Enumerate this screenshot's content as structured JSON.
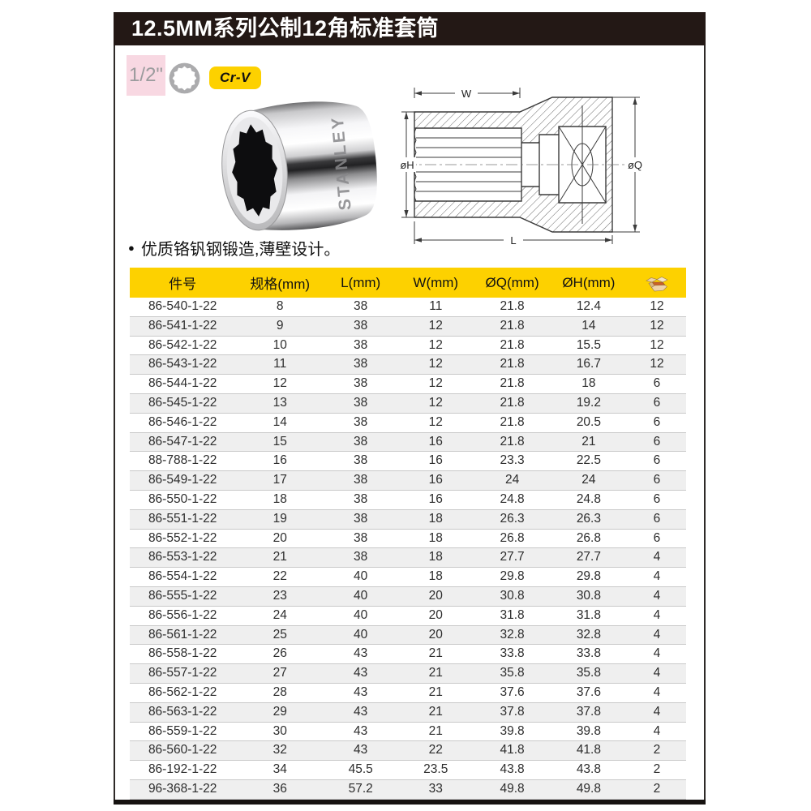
{
  "page": {
    "title": "12.5MM系列公制12角标准套筒",
    "bullet_glyph": "●",
    "feature_bullet": "优质铬钒钢锻造,薄壁设计。"
  },
  "badges": {
    "drive_size": "1/2\"",
    "drive_profile_icon": "12-point-socket-icon",
    "material": "Cr-V"
  },
  "product": {
    "brand_embossed": "STANLEY"
  },
  "diagram": {
    "label_w": "W",
    "label_h": "øH",
    "label_q": "øQ",
    "label_l": "L"
  },
  "table": {
    "headers": [
      "件号",
      "规格(mm)",
      "L(mm)",
      "W(mm)",
      "ØQ(mm)",
      "ØH(mm)"
    ],
    "qty_column_icon": "box-icon",
    "rows": [
      [
        "86-540-1-22",
        "8",
        "38",
        "11",
        "21.8",
        "12.4",
        "12"
      ],
      [
        "86-541-1-22",
        "9",
        "38",
        "12",
        "21.8",
        "14",
        "12"
      ],
      [
        "86-542-1-22",
        "10",
        "38",
        "12",
        "21.8",
        "15.5",
        "12"
      ],
      [
        "86-543-1-22",
        "11",
        "38",
        "12",
        "21.8",
        "16.7",
        "12"
      ],
      [
        "86-544-1-22",
        "12",
        "38",
        "12",
        "21.8",
        "18",
        "6"
      ],
      [
        "86-545-1-22",
        "13",
        "38",
        "12",
        "21.8",
        "19.2",
        "6"
      ],
      [
        "86-546-1-22",
        "14",
        "38",
        "12",
        "21.8",
        "20.5",
        "6"
      ],
      [
        "86-547-1-22",
        "15",
        "38",
        "16",
        "21.8",
        "21",
        "6"
      ],
      [
        "88-788-1-22",
        "16",
        "38",
        "16",
        "23.3",
        "22.5",
        "6"
      ],
      [
        "86-549-1-22",
        "17",
        "38",
        "16",
        "24",
        "24",
        "6"
      ],
      [
        "86-550-1-22",
        "18",
        "38",
        "16",
        "24.8",
        "24.8",
        "6"
      ],
      [
        "86-551-1-22",
        "19",
        "38",
        "18",
        "26.3",
        "26.3",
        "6"
      ],
      [
        "86-552-1-22",
        "20",
        "38",
        "18",
        "26.8",
        "26.8",
        "6"
      ],
      [
        "86-553-1-22",
        "21",
        "38",
        "18",
        "27.7",
        "27.7",
        "4"
      ],
      [
        "86-554-1-22",
        "22",
        "40",
        "18",
        "29.8",
        "29.8",
        "4"
      ],
      [
        "86-555-1-22",
        "23",
        "40",
        "20",
        "30.8",
        "30.8",
        "4"
      ],
      [
        "86-556-1-22",
        "24",
        "40",
        "20",
        "31.8",
        "31.8",
        "4"
      ],
      [
        "86-561-1-22",
        "25",
        "40",
        "20",
        "32.8",
        "32.8",
        "4"
      ],
      [
        "86-558-1-22",
        "26",
        "43",
        "21",
        "33.8",
        "33.8",
        "4"
      ],
      [
        "86-557-1-22",
        "27",
        "43",
        "21",
        "35.8",
        "35.8",
        "4"
      ],
      [
        "86-562-1-22",
        "28",
        "43",
        "21",
        "37.6",
        "37.6",
        "4"
      ],
      [
        "86-563-1-22",
        "29",
        "43",
        "21",
        "37.8",
        "37.8",
        "4"
      ],
      [
        "86-559-1-22",
        "30",
        "43",
        "21",
        "39.8",
        "39.8",
        "4"
      ],
      [
        "86-560-1-22",
        "32",
        "43",
        "22",
        "41.8",
        "41.8",
        "2"
      ],
      [
        "86-192-1-22",
        "34",
        "45.5",
        "23.5",
        "43.8",
        "43.8",
        "2"
      ],
      [
        "96-368-1-22",
        "36",
        "57.2",
        "33",
        "49.8",
        "49.8",
        "2"
      ]
    ]
  },
  "colors": {
    "title_bar_bg": "#231815",
    "accent_yellow": "#fdd100",
    "badge_pink": "#f8d8e2",
    "row_alt": "#efefef",
    "row_border": "#c9c9c9"
  }
}
